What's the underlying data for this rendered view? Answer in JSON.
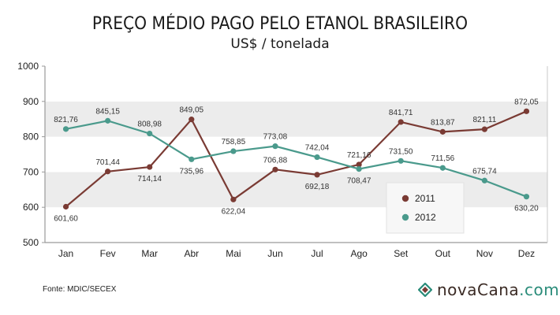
{
  "title": "PREÇO MÉDIO PAGO PELO ETANOL BRASILEIRO",
  "subtitle": "US$ / tonelada",
  "source": "Fonte: MDIC/SECEX",
  "logo": {
    "name": "novaCana",
    "domain": ".com"
  },
  "colors": {
    "s2011": "#7a3b34",
    "s2012": "#4a9a8c",
    "band": "#ececec",
    "frame": "#9a9a9a"
  },
  "chart_data": {
    "type": "line",
    "categories": [
      "Jan",
      "Fev",
      "Mar",
      "Abr",
      "Mai",
      "Jun",
      "Jul",
      "Ago",
      "Set",
      "Out",
      "Nov",
      "Dez"
    ],
    "ylim": [
      500,
      1000
    ],
    "yticks": [
      500,
      600,
      700,
      800,
      900,
      1000
    ],
    "ytick_labels": [
      "500",
      "600",
      "700",
      "800",
      "900",
      "1000"
    ],
    "series": [
      {
        "name": "2011",
        "values": [
          601.6,
          701.44,
          714.14,
          849.05,
          622.04,
          706.88,
          692.18,
          721.16,
          841.71,
          813.87,
          821.11,
          872.05
        ],
        "labels": [
          "601,60",
          "701,44",
          "714,14",
          "849,05",
          "622,04",
          "706,88",
          "692,18",
          "721,16",
          "841,71",
          "813,87",
          "821,11",
          "872,05"
        ]
      },
      {
        "name": "2012",
        "values": [
          821.76,
          845.15,
          808.98,
          735.96,
          758.85,
          773.08,
          742.04,
          708.47,
          731.5,
          711.56,
          675.74,
          630.2
        ],
        "labels": [
          "821,76",
          "845,15",
          "808,98",
          "735,96",
          "758,85",
          "773,08",
          "742,04",
          "708,47",
          "731,50",
          "711,56",
          "675,74",
          "630,20"
        ]
      }
    ],
    "legend_position": "bottom-right, inside plot"
  }
}
